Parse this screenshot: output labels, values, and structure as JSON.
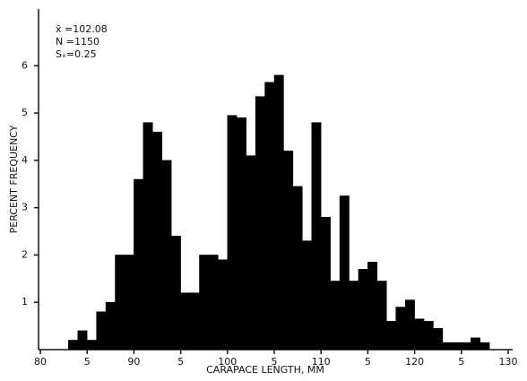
{
  "chart_data": {
    "type": "histogram",
    "xlabel": "CARAPACE LENGTH, MM",
    "ylabel": "PERCENT FREQUENCY",
    "annotations": [
      "x̄ =102.08",
      "N =1150",
      "Sₓ=0.25"
    ],
    "bins": [
      83,
      84,
      85,
      86,
      87,
      88,
      89,
      90,
      91,
      92,
      93,
      94,
      95,
      96,
      97,
      98,
      99,
      100,
      101,
      102,
      103,
      104,
      105,
      106,
      107,
      108,
      109,
      110,
      111,
      112,
      113,
      114,
      115,
      116,
      117,
      118,
      119,
      120,
      121,
      122,
      123,
      124,
      125,
      126,
      127,
      128
    ],
    "counts": [
      0.2,
      0.4,
      0.2,
      0.8,
      1.0,
      2.0,
      2.0,
      3.6,
      4.8,
      4.6,
      4.0,
      2.4,
      1.2,
      1.2,
      2.0,
      2.0,
      1.9,
      4.95,
      4.9,
      4.1,
      5.35,
      5.65,
      5.8,
      4.2,
      3.45,
      2.3,
      4.8,
      2.8,
      1.45,
      3.25,
      1.45,
      1.7,
      1.85,
      1.45,
      0.6,
      0.9,
      1.05,
      0.65,
      0.6,
      0.45,
      0.15,
      0.15,
      0.15,
      0.25,
      0.15
    ],
    "color": "#000000",
    "xlim": [
      80,
      130
    ],
    "xticks": [
      80,
      {
        "value": 85,
        "label": "5"
      },
      90,
      {
        "value": 95,
        "label": "5"
      },
      100,
      {
        "value": 105,
        "label": "5"
      },
      110,
      {
        "value": 115,
        "label": "5"
      },
      120,
      {
        "value": 125,
        "label": "5"
      },
      130
    ],
    "ylim": [
      0,
      7.2
    ],
    "yticks": [
      1,
      2,
      3,
      4,
      5,
      6
    ]
  }
}
